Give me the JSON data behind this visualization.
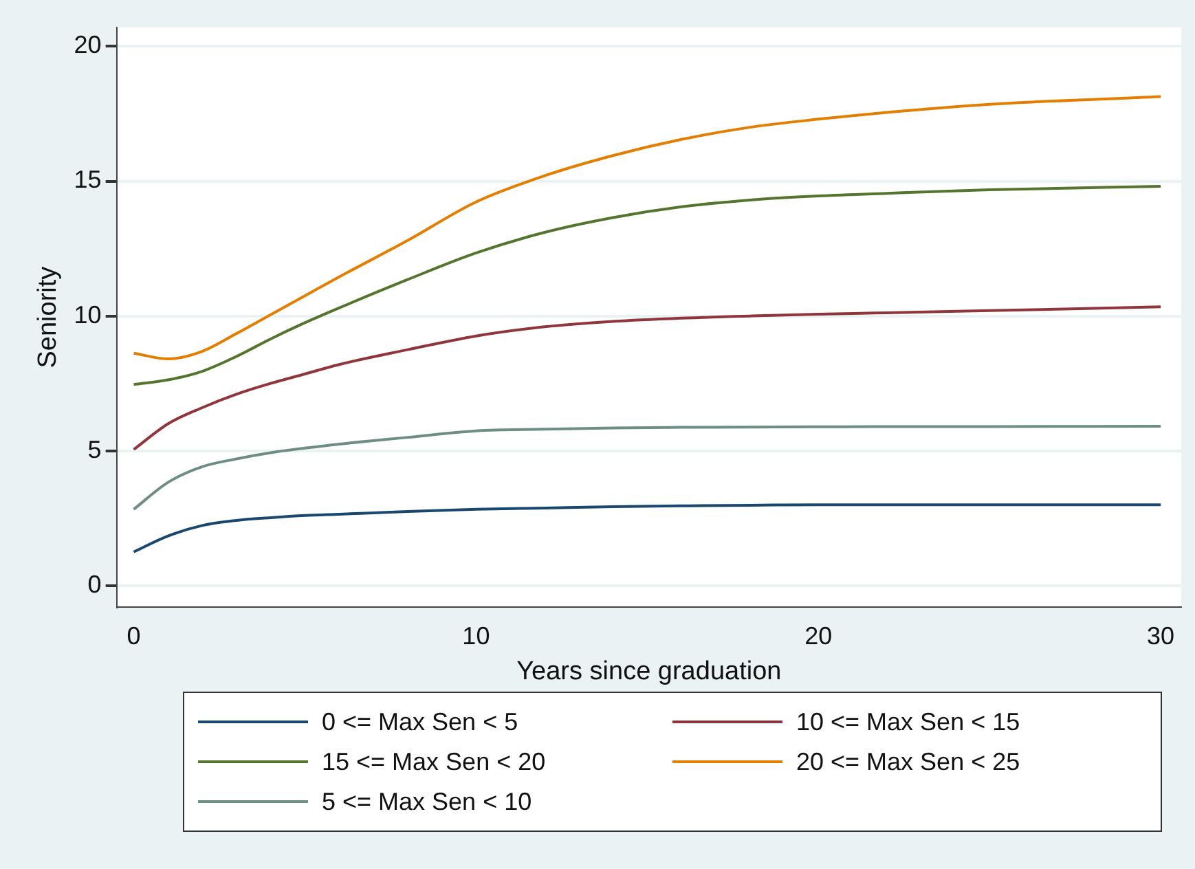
{
  "chart_data": {
    "type": "line",
    "xlabel": "Years since graduation",
    "ylabel": "Seniority",
    "x": [
      0,
      1,
      2,
      3,
      4,
      5,
      6,
      8,
      10,
      12,
      14,
      16,
      18,
      20,
      22,
      25,
      30
    ],
    "xlim": [
      -0.5,
      30.6
    ],
    "xticks": [
      0,
      10,
      20,
      30
    ],
    "ylim": [
      -0.8,
      20.7
    ],
    "yticks": [
      0,
      5,
      10,
      15,
      20
    ],
    "grid": "y",
    "legend": "bottom",
    "marker": "none",
    "line_style": "solid",
    "series": [
      {
        "name": "0 <= Max Sen < 5",
        "color": "#1a476f",
        "values": [
          1.25,
          1.84,
          2.23,
          2.42,
          2.52,
          2.6,
          2.65,
          2.75,
          2.83,
          2.88,
          2.93,
          2.96,
          2.98,
          3.0,
          3.0,
          3.0,
          3.0
        ]
      },
      {
        "name": "10 <= Max Sen < 15",
        "color": "#90353b",
        "values": [
          5.05,
          6.0,
          6.6,
          7.1,
          7.5,
          7.85,
          8.2,
          8.75,
          9.26,
          9.6,
          9.8,
          9.92,
          10.0,
          10.07,
          10.12,
          10.2,
          10.34
        ]
      },
      {
        "name": "15 <= Max Sen < 20",
        "color": "#55752f",
        "values": [
          7.46,
          7.63,
          7.95,
          8.5,
          9.15,
          9.75,
          10.3,
          11.35,
          12.34,
          13.1,
          13.65,
          14.05,
          14.3,
          14.45,
          14.55,
          14.68,
          14.81
        ]
      },
      {
        "name": "20 <= Max Sen < 25",
        "color": "#e37e00",
        "values": [
          8.62,
          8.41,
          8.69,
          9.35,
          10.05,
          10.75,
          11.45,
          12.8,
          14.23,
          15.2,
          15.95,
          16.55,
          17.0,
          17.3,
          17.55,
          17.85,
          18.14
        ]
      },
      {
        "name": "5 <= Max Sen < 10",
        "color": "#6e8e84",
        "values": [
          2.83,
          3.83,
          4.41,
          4.7,
          4.93,
          5.1,
          5.25,
          5.5,
          5.74,
          5.8,
          5.85,
          5.87,
          5.88,
          5.89,
          5.9,
          5.9,
          5.91
        ]
      }
    ]
  }
}
